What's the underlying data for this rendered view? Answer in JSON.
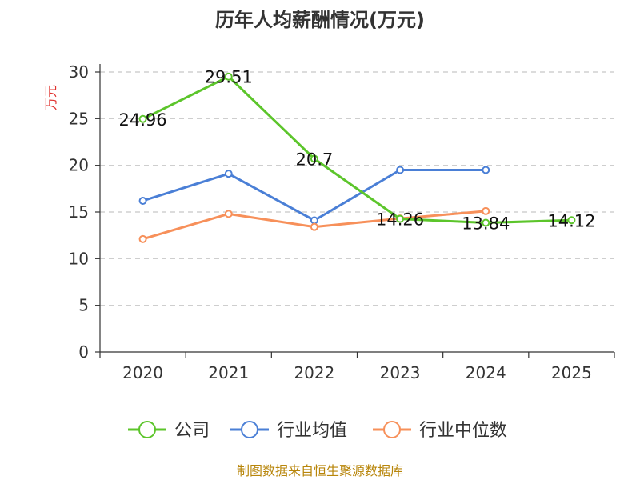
{
  "chart_data": {
    "type": "line",
    "title": "历年人均薪酬情况(万元)",
    "ylabel": "万元",
    "categories": [
      "2020",
      "2021",
      "2022",
      "2023",
      "2024",
      "2025"
    ],
    "ylim": [
      0,
      30
    ],
    "yticks": [
      "0",
      "5",
      "10",
      "15",
      "20",
      "25",
      "30"
    ],
    "grid": true,
    "legend_position": "bottom",
    "series": [
      {
        "name": "公司",
        "color": "#5cc52b",
        "values": [
          24.96,
          29.51,
          20.7,
          14.26,
          13.84,
          14.12
        ],
        "labels": [
          "24.96",
          "29.51",
          "20.7",
          "14.26",
          "13.84",
          "14.12"
        ]
      },
      {
        "name": "行业均值",
        "color": "#4a7fd6",
        "values": [
          16.2,
          19.1,
          14.1,
          19.5,
          19.5,
          null
        ]
      },
      {
        "name": "行业中位数",
        "color": "#f7905a",
        "values": [
          12.1,
          14.8,
          13.4,
          14.3,
          15.1,
          null
        ]
      }
    ],
    "source": "制图数据来自恒生聚源数据库"
  }
}
